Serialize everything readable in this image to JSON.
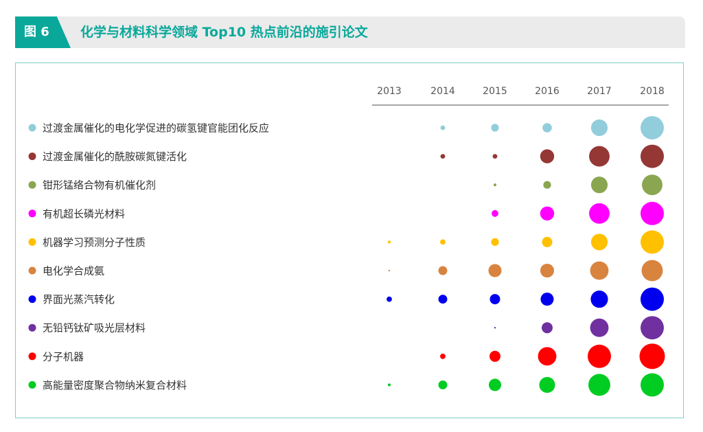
{
  "figure": {
    "tab_label": "图 6",
    "title": "化学与材料科学领域 Top10 热点前沿的施引论文"
  },
  "colors": {
    "accent": "#0aa89a",
    "header_bg": "#ebebeb",
    "frame": "#7ecfc4"
  },
  "chart_data": {
    "type": "bubble",
    "title": "化学与材料科学领域 Top10 热点前沿的施引论文",
    "years": [
      "2013",
      "2014",
      "2015",
      "2016",
      "2017",
      "2018"
    ],
    "legend_placement": "left",
    "grid": false,
    "size_unit": "relative bubble size (approx., 0–1 scale)",
    "series": [
      {
        "name": "过渡金属催化的电化学促进的碳氢键官能团化反应",
        "color": "#92cddc",
        "values": [
          0,
          0.2,
          0.33,
          0.4,
          0.71,
          1.0
        ]
      },
      {
        "name": "过渡金属催化的酰胺碳氮键活化",
        "color": "#953735",
        "values": [
          0,
          0.2,
          0.2,
          0.6,
          0.88,
          1.0
        ]
      },
      {
        "name": "钳形锰络合物有机催化剂",
        "color": "#8aa651",
        "values": [
          0,
          0,
          0.12,
          0.33,
          0.71,
          0.88
        ]
      },
      {
        "name": "有机超长磷光材料",
        "color": "#ff00ff",
        "values": [
          0,
          0,
          0.29,
          0.6,
          0.88,
          1.0
        ]
      },
      {
        "name": "机器学习预测分子性质",
        "color": "#ffc000",
        "values": [
          0.12,
          0.23,
          0.33,
          0.44,
          0.71,
          1.0
        ]
      },
      {
        "name": "电化学合成氨",
        "color": "#d8843f",
        "values": [
          0.06,
          0.38,
          0.56,
          0.59,
          0.79,
          0.91
        ]
      },
      {
        "name": "界面光蒸汽转化",
        "color": "#0000ee",
        "values": [
          0.23,
          0.38,
          0.44,
          0.56,
          0.74,
          1.0
        ]
      },
      {
        "name": "无铅钙钛矿吸光层材料",
        "color": "#7030a0",
        "values": [
          0,
          0,
          0.06,
          0.47,
          0.79,
          1.0
        ]
      },
      {
        "name": "分子机器",
        "color": "#ff0000",
        "values": [
          0,
          0.23,
          0.47,
          0.79,
          1.0,
          1.09
        ]
      },
      {
        "name": "高能量密度聚合物纳米复合材料",
        "color": "#00cc22",
        "values": [
          0.12,
          0.38,
          0.53,
          0.68,
          0.94,
          1.0
        ]
      }
    ]
  }
}
